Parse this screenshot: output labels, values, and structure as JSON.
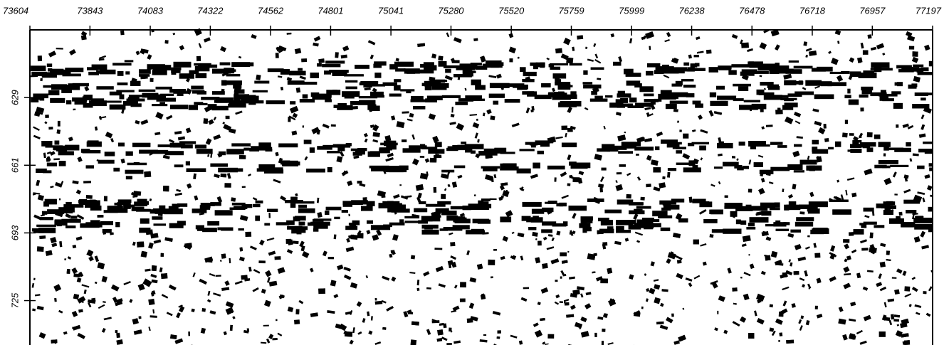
{
  "chart_data": {
    "type": "seismic-section",
    "xlim": [
      73604,
      77197
    ],
    "xticks": [
      73604,
      73843,
      74083,
      74322,
      74562,
      74801,
      75041,
      75280,
      75520,
      75759,
      75999,
      76238,
      76478,
      76718,
      76957,
      77197
    ],
    "ylim": [
      597,
      746
    ],
    "yticks": [
      629,
      661,
      693,
      725
    ]
  }
}
